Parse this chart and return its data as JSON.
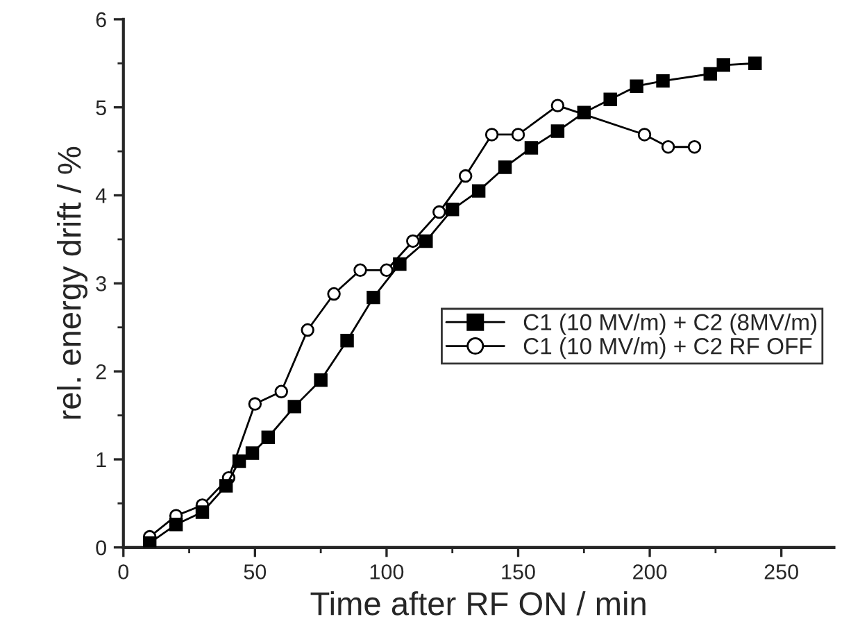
{
  "chart_data": {
    "type": "line",
    "xlabel": "Time after RF ON / min",
    "ylabel": "rel. energy drift / %",
    "xlim": [
      0,
      270
    ],
    "xticks": [
      0,
      50,
      100,
      150,
      200,
      250
    ],
    "ylim": [
      0,
      6
    ],
    "yticks": [
      0,
      1,
      2,
      3,
      4,
      5,
      6
    ],
    "grid": false,
    "legend": "right",
    "line_style": "solid",
    "series": [
      {
        "name": "C1 (10 MV/m) + C2 (8MV/m)",
        "color": "#000000",
        "marker": "square",
        "x": [
          10,
          20,
          30,
          39,
          44,
          49,
          55,
          65,
          75,
          85,
          95,
          105,
          115,
          125,
          135,
          145,
          155,
          165,
          175,
          185,
          195,
          205,
          223,
          228,
          240
        ],
        "values": [
          0.05,
          0.26,
          0.4,
          0.7,
          0.98,
          1.07,
          1.25,
          1.6,
          1.9,
          2.35,
          2.84,
          3.22,
          3.48,
          3.84,
          4.05,
          4.32,
          4.54,
          4.73,
          4.94,
          5.09,
          5.24,
          5.3,
          5.38,
          5.48,
          5.5
        ]
      },
      {
        "name": "C1 (10 MV/m) + C2 RF OFF",
        "color": "#000000",
        "marker": "circle",
        "x": [
          10,
          20,
          30,
          40,
          50,
          60,
          70,
          80,
          90,
          100,
          110,
          120,
          130,
          140,
          150,
          165,
          198,
          207,
          217
        ],
        "values": [
          0.12,
          0.36,
          0.48,
          0.79,
          1.63,
          1.77,
          2.47,
          2.88,
          3.15,
          3.15,
          3.48,
          3.81,
          4.22,
          4.69,
          4.69,
          5.02,
          4.69,
          4.55,
          4.55
        ]
      }
    ]
  }
}
